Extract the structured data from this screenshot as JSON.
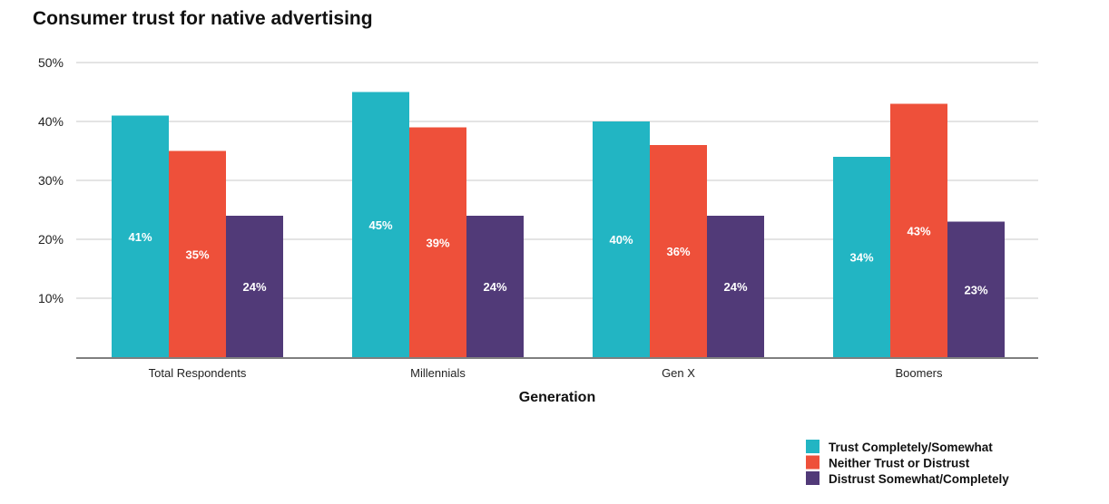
{
  "chart_data": {
    "type": "bar",
    "title": "Consumer trust for native advertising",
    "xlabel": "Generation",
    "ylabel": "",
    "ylim": [
      0,
      50
    ],
    "yticks": [
      10,
      20,
      30,
      40,
      50
    ],
    "ytick_labels": [
      "10%",
      "20%",
      "30%",
      "40%",
      "50%"
    ],
    "grid": true,
    "legend_position": "bottom-right",
    "categories": [
      "Total Respondents",
      "Millennials",
      "Gen X",
      "Boomers"
    ],
    "series": [
      {
        "name": "Trust Completely/Somewhat",
        "color": "#22b5c3",
        "values": [
          41,
          45,
          40,
          34
        ],
        "labels": [
          "41%",
          "45%",
          "40%",
          "34%"
        ]
      },
      {
        "name": "Neither Trust or Distrust",
        "color": "#ee503a",
        "values": [
          35,
          39,
          36,
          43
        ],
        "labels": [
          "35%",
          "39%",
          "36%",
          "43%"
        ]
      },
      {
        "name": "Distrust Somewhat/Completely",
        "color": "#513a78",
        "values": [
          24,
          24,
          24,
          23
        ],
        "labels": [
          "24%",
          "24%",
          "24%",
          "23%"
        ]
      }
    ]
  }
}
